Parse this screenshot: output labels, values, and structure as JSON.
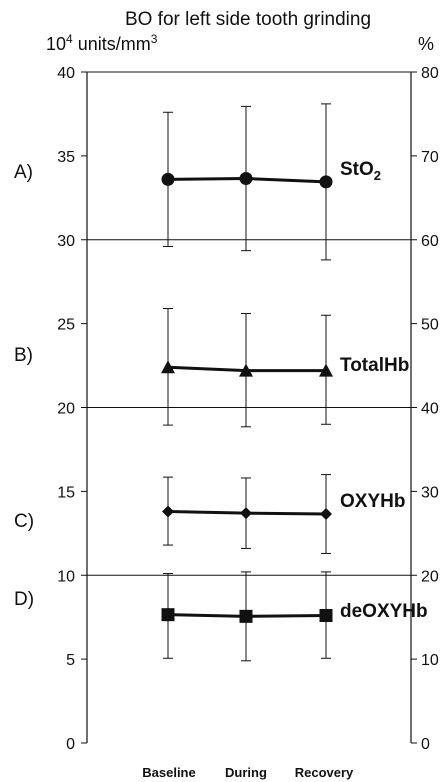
{
  "chart_data": {
    "type": "line",
    "title": "BO for left side tooth grinding",
    "y_left_unit_base": "10",
    "y_left_unit_exp": "4",
    "y_left_unit_rest": " units/mm",
    "y_left_unit_cube": "3",
    "y_right_unit": "%",
    "categories": [
      "Baseline",
      "During",
      "Recovery"
    ],
    "ylim_left": [
      0,
      40
    ],
    "ylim_right": [
      0,
      80
    ],
    "y_left_ticks": [
      "0",
      "5",
      "10",
      "15",
      "20",
      "25",
      "30",
      "35",
      "40"
    ],
    "y_right_ticks": [
      "0",
      "10",
      "20",
      "30",
      "40",
      "50",
      "60",
      "70",
      "80"
    ],
    "grid": "horizontal at 10, 20, 30 and 40",
    "panel_labels": [
      "A)",
      "B)",
      "C)",
      "D)"
    ],
    "series": [
      {
        "name": "StO2",
        "label_main": "StO",
        "label_sub": "2",
        "marker": "circle",
        "values": [
          33.6,
          33.65,
          33.45
        ],
        "err_low": [
          29.6,
          29.35,
          28.8
        ],
        "err_high": [
          37.6,
          37.95,
          38.1
        ]
      },
      {
        "name": "TotalHb",
        "label_main": "TotalHb",
        "label_sub": "",
        "marker": "triangle",
        "values": [
          22.4,
          22.2,
          22.2
        ],
        "err_low": [
          18.95,
          18.85,
          19.0
        ],
        "err_high": [
          25.9,
          25.6,
          25.5
        ]
      },
      {
        "name": "OXYHb",
        "label_main": "OXYHb",
        "label_sub": "",
        "marker": "diamond",
        "values": [
          13.8,
          13.7,
          13.65
        ],
        "err_low": [
          11.8,
          11.6,
          11.3
        ],
        "err_high": [
          15.85,
          15.8,
          16.0
        ]
      },
      {
        "name": "deOXYHb",
        "label_main": "deOXYHb",
        "label_sub": "",
        "marker": "square",
        "values": [
          7.65,
          7.55,
          7.6
        ],
        "err_low": [
          5.05,
          4.9,
          5.05
        ],
        "err_high": [
          10.1,
          10.2,
          10.2
        ]
      }
    ],
    "colors": {
      "line": "#111111",
      "grid": "#111111",
      "background": "#ffffff"
    }
  }
}
